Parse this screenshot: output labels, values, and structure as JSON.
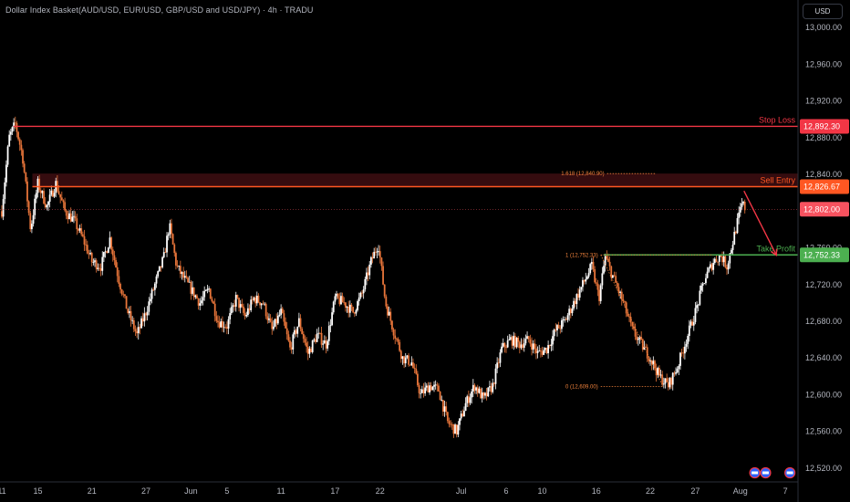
{
  "header": {
    "title": "Dollar Index Basket(AUD/USD, EUR/USD, GBP/USD and USD/JPY) · 4h · TRADU",
    "currency_button": "USD"
  },
  "chart_data": {
    "type": "candlestick",
    "ylim": [
      12505,
      13030
    ],
    "y_ticks": [
      "13,000.00",
      "12,960.00",
      "12,920.00",
      "12,880.00",
      "12,840.00",
      "12,800.00",
      "12,760.00",
      "12,720.00",
      "12,680.00",
      "12,640.00",
      "12,600.00",
      "12,560.00",
      "12,520.00"
    ],
    "y_tick_values": [
      13000,
      12960,
      12920,
      12880,
      12840,
      12800,
      12760,
      12720,
      12680,
      12640,
      12600,
      12560,
      12520
    ],
    "x_ticks": [
      "11",
      "15",
      "21",
      "27",
      "Jun",
      "5",
      "11",
      "17",
      "22",
      "Jul",
      "6",
      "10",
      "16",
      "22",
      "27",
      "Aug",
      "7"
    ],
    "x_tick_days": [
      0,
      4,
      10,
      16,
      21,
      25,
      31,
      37,
      42,
      51,
      56,
      60,
      66,
      72,
      77,
      82,
      87
    ],
    "x_range_days": [
      -0.2,
      88.4
    ],
    "price_path": [
      [
        0,
        12800
      ],
      [
        0.8,
        12880
      ],
      [
        1.5,
        12895
      ],
      [
        2.3,
        12860
      ],
      [
        3.2,
        12780
      ],
      [
        4,
        12830
      ],
      [
        5,
        12805
      ],
      [
        6,
        12830
      ],
      [
        7,
        12800
      ],
      [
        8,
        12790
      ],
      [
        9,
        12770
      ],
      [
        10,
        12745
      ],
      [
        11,
        12740
      ],
      [
        12,
        12770
      ],
      [
        13,
        12725
      ],
      [
        14,
        12690
      ],
      [
        15,
        12665
      ],
      [
        16,
        12690
      ],
      [
        17,
        12720
      ],
      [
        18,
        12750
      ],
      [
        18.6,
        12785
      ],
      [
        19.4,
        12740
      ],
      [
        20,
        12730
      ],
      [
        21,
        12715
      ],
      [
        22,
        12700
      ],
      [
        23,
        12715
      ],
      [
        24,
        12680
      ],
      [
        25,
        12675
      ],
      [
        26,
        12705
      ],
      [
        27,
        12685
      ],
      [
        28,
        12705
      ],
      [
        29,
        12700
      ],
      [
        30,
        12670
      ],
      [
        31,
        12690
      ],
      [
        32,
        12650
      ],
      [
        33,
        12680
      ],
      [
        34,
        12645
      ],
      [
        35,
        12665
      ],
      [
        36,
        12655
      ],
      [
        37,
        12705
      ],
      [
        38,
        12700
      ],
      [
        39,
        12690
      ],
      [
        40,
        12710
      ],
      [
        41,
        12745
      ],
      [
        41.8,
        12765
      ],
      [
        42.6,
        12700
      ],
      [
        43.5,
        12670
      ],
      [
        44.5,
        12640
      ],
      [
        45.5,
        12635
      ],
      [
        46.5,
        12600
      ],
      [
        47.5,
        12610
      ],
      [
        48.5,
        12605
      ],
      [
        49.5,
        12570
      ],
      [
        50.5,
        12560
      ],
      [
        51.5,
        12590
      ],
      [
        52.5,
        12610
      ],
      [
        53.5,
        12595
      ],
      [
        54.5,
        12610
      ],
      [
        55.5,
        12650
      ],
      [
        56.5,
        12660
      ],
      [
        57.5,
        12655
      ],
      [
        58.5,
        12660
      ],
      [
        59.5,
        12645
      ],
      [
        60.5,
        12650
      ],
      [
        61.5,
        12670
      ],
      [
        62.5,
        12680
      ],
      [
        63.5,
        12700
      ],
      [
        64.5,
        12720
      ],
      [
        65.5,
        12740
      ],
      [
        66.3,
        12705
      ],
      [
        67,
        12750
      ],
      [
        68,
        12725
      ],
      [
        69,
        12700
      ],
      [
        70,
        12670
      ],
      [
        71,
        12655
      ],
      [
        72,
        12640
      ],
      [
        73,
        12620
      ],
      [
        74,
        12610
      ],
      [
        75,
        12630
      ],
      [
        76,
        12660
      ],
      [
        77,
        12690
      ],
      [
        78,
        12725
      ],
      [
        79,
        12745
      ],
      [
        79.8,
        12752
      ],
      [
        80.5,
        12740
      ],
      [
        81,
        12760
      ],
      [
        81.6,
        12785
      ],
      [
        82.2,
        12808
      ],
      [
        82.6,
        12802
      ]
    ],
    "levels": [
      {
        "label": "Stop Loss",
        "value": 12892.3,
        "tag": "12,892.30",
        "color": "#f23645"
      },
      {
        "label": "Sell Entry",
        "value": 12826.67,
        "tag": "12,826.67",
        "color": "#ff5722"
      },
      {
        "label": "Take Profit",
        "value": 12752.33,
        "tag": "12,752.33",
        "color": "#4caf50"
      }
    ],
    "current_price": {
      "value": 12802.0,
      "tag": "12,802.00",
      "color": "#f7525f"
    },
    "sell_zone": [
      12826.67,
      12840.9
    ],
    "fib": [
      {
        "label": "1.618 (12,840.90)",
        "value": 12840.9
      },
      {
        "label": "1 (12,752.33)",
        "value": 12752.33
      },
      {
        "label": "0 (12,609.00)",
        "value": 12609.0
      }
    ],
    "projection_arrow": {
      "from": [
        82.4,
        12822
      ],
      "to": [
        86,
        12752
      ]
    },
    "calendar_events_days": [
      83.6,
      84.8,
      87.5
    ]
  }
}
